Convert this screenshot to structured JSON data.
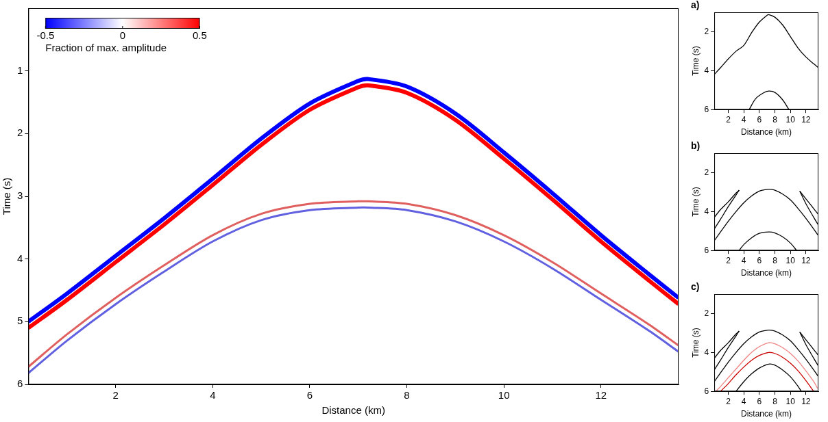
{
  "chart_data": [
    {
      "type": "line",
      "xlabel": "Distance (km)",
      "ylabel": "Time (s)",
      "xlim": [
        0.2,
        13.6
      ],
      "ylim": [
        6,
        0
      ],
      "xticks": [
        2,
        4,
        6,
        8,
        10,
        12
      ],
      "yticks": [
        1,
        2,
        3,
        4,
        5,
        6
      ],
      "grid": false,
      "x": [
        0.2,
        1,
        2,
        3,
        4,
        5,
        6,
        7,
        7.2,
        8,
        9,
        10,
        11,
        12,
        13,
        13.6
      ],
      "series": [
        {
          "color": "#0000ff",
          "values": [
            5.0,
            4.55,
            3.95,
            3.35,
            2.72,
            2.08,
            1.52,
            1.16,
            1.13,
            1.25,
            1.68,
            2.3,
            2.95,
            3.62,
            4.25,
            4.62
          ]
        },
        {
          "color": "#ff0000",
          "values": [
            5.1,
            4.65,
            4.05,
            3.45,
            2.82,
            2.18,
            1.62,
            1.26,
            1.23,
            1.35,
            1.78,
            2.4,
            3.05,
            3.72,
            4.35,
            4.72
          ]
        },
        {
          "color": "#e06060",
          "values": [
            5.72,
            5.2,
            4.62,
            4.1,
            3.62,
            3.28,
            3.12,
            3.08,
            3.08,
            3.12,
            3.3,
            3.62,
            4.05,
            4.55,
            5.05,
            5.38
          ]
        },
        {
          "color": "#6060e0",
          "values": [
            5.82,
            5.3,
            4.72,
            4.2,
            3.72,
            3.38,
            3.22,
            3.18,
            3.18,
            3.22,
            3.4,
            3.72,
            4.15,
            4.65,
            5.15,
            5.48
          ]
        }
      ],
      "colorbar": {
        "range": [
          -0.5,
          0.5
        ],
        "ticks": [
          -0.5,
          0,
          0.5
        ],
        "colors": [
          "#0000ff",
          "#ffffff",
          "#ff0000"
        ],
        "label": "Fraction of max. amplitude"
      }
    },
    {
      "type": "line",
      "label": "a)",
      "xlabel": "Distance (km)",
      "ylabel": "Time (s)",
      "xlim": [
        0.2,
        13.6
      ],
      "ylim": [
        6,
        1
      ],
      "xticks": [
        2,
        4,
        6,
        8,
        10,
        12
      ],
      "yticks": [
        2,
        4,
        6
      ],
      "grid": false,
      "series": [
        {
          "color": "#000000",
          "x": [
            0.2,
            1,
            2,
            3,
            4,
            5,
            6,
            7,
            7.2,
            8,
            9,
            10,
            11,
            12,
            13,
            13.6
          ],
          "values": [
            4.2,
            3.85,
            3.4,
            3.0,
            2.7,
            2.05,
            1.5,
            1.15,
            1.12,
            1.25,
            1.65,
            2.25,
            2.85,
            3.3,
            3.65,
            3.85
          ]
        },
        {
          "color": "#000000",
          "x": [
            4.7,
            5.5,
            6.5,
            7.2,
            8,
            9,
            9.8
          ],
          "values": [
            6,
            5.45,
            5.15,
            5.05,
            5.12,
            5.5,
            6
          ]
        }
      ]
    },
    {
      "type": "line",
      "label": "b)",
      "xlabel": "Distance (km)",
      "ylabel": "Time (s)",
      "xlim": [
        0.2,
        13.6
      ],
      "ylim": [
        6,
        1
      ],
      "xticks": [
        2,
        4,
        6,
        8,
        10,
        12
      ],
      "yticks": [
        2,
        4,
        6
      ],
      "grid": false,
      "series": [
        {
          "color": "#000000",
          "x": [
            0.2,
            1,
            2,
            3,
            4,
            5,
            6,
            7,
            7.2,
            8,
            9,
            10,
            11,
            12,
            13,
            13.6
          ],
          "values": [
            5.5,
            5.05,
            4.5,
            4.0,
            3.55,
            3.2,
            2.95,
            2.86,
            2.85,
            2.9,
            3.1,
            3.4,
            3.85,
            4.35,
            4.9,
            5.25
          ]
        },
        {
          "color": "#000000",
          "x": [
            0.2,
            1,
            2,
            3,
            3.4
          ],
          "values": [
            4.3,
            3.9,
            3.5,
            3.05,
            2.9
          ]
        },
        {
          "color": "#000000",
          "x": [
            0.2,
            1,
            2,
            3,
            3.4
          ],
          "values": [
            4.9,
            4.4,
            3.75,
            3.15,
            2.9
          ]
        },
        {
          "color": "#000000",
          "x": [
            11.2,
            12,
            13,
            13.6
          ],
          "values": [
            2.95,
            3.35,
            3.85,
            4.15
          ]
        },
        {
          "color": "#000000",
          "x": [
            11.2,
            12,
            13,
            13.6
          ],
          "values": [
            2.95,
            3.6,
            4.3,
            4.7
          ]
        },
        {
          "color": "#000000",
          "x": [
            3.4,
            4,
            5,
            6,
            7.2,
            8,
            9,
            10,
            10.8
          ],
          "values": [
            6,
            5.7,
            5.35,
            5.12,
            5.05,
            5.1,
            5.3,
            5.62,
            6
          ]
        }
      ]
    },
    {
      "type": "line",
      "label": "c)",
      "xlabel": "Distance (km)",
      "ylabel": "Time (s)",
      "xlim": [
        0.2,
        13.6
      ],
      "ylim": [
        6,
        1
      ],
      "xticks": [
        2,
        4,
        6,
        8,
        10,
        12
      ],
      "yticks": [
        2,
        4,
        6
      ],
      "grid": false,
      "series": [
        {
          "color": "#000000",
          "x": [
            0.2,
            1,
            2,
            3,
            4,
            5,
            6,
            7,
            7.2,
            8,
            9,
            10,
            11,
            12,
            13,
            13.6
          ],
          "values": [
            5.5,
            5.05,
            4.5,
            4.0,
            3.55,
            3.2,
            2.95,
            2.86,
            2.85,
            2.9,
            3.1,
            3.4,
            3.85,
            4.35,
            4.9,
            5.25
          ]
        },
        {
          "color": "#000000",
          "x": [
            0.2,
            1,
            2,
            3,
            3.4
          ],
          "values": [
            4.3,
            3.9,
            3.5,
            3.05,
            2.9
          ]
        },
        {
          "color": "#000000",
          "x": [
            0.2,
            1,
            2,
            3,
            3.4
          ],
          "values": [
            4.9,
            4.4,
            3.75,
            3.15,
            2.9
          ]
        },
        {
          "color": "#000000",
          "x": [
            11.2,
            12,
            13,
            13.6
          ],
          "values": [
            2.95,
            3.35,
            3.85,
            4.15
          ]
        },
        {
          "color": "#000000",
          "x": [
            11.2,
            12,
            13,
            13.6
          ],
          "values": [
            2.95,
            3.6,
            4.3,
            4.7
          ]
        },
        {
          "color": "#f08080",
          "x": [
            0.4,
            1,
            2,
            3,
            4,
            5,
            6,
            7.2,
            8,
            9,
            10,
            11,
            12,
            13,
            13.5
          ],
          "values": [
            6,
            5.75,
            5.3,
            4.85,
            4.4,
            4.0,
            3.7,
            3.5,
            3.55,
            3.75,
            4.05,
            4.45,
            4.95,
            5.5,
            5.85
          ]
        },
        {
          "color": "#cc0000",
          "x": [
            1.0,
            2,
            3,
            4,
            5,
            6,
            7.2,
            8,
            9,
            10,
            11,
            12,
            13.0
          ],
          "values": [
            6,
            5.6,
            5.15,
            4.75,
            4.4,
            4.15,
            4.0,
            4.05,
            4.25,
            4.55,
            4.95,
            5.45,
            6
          ]
        },
        {
          "color": "#000000",
          "x": [
            3.0,
            4,
            5,
            6,
            7.2,
            8,
            9,
            10,
            11,
            11.4
          ],
          "values": [
            6,
            5.5,
            5.1,
            4.8,
            4.6,
            4.65,
            4.9,
            5.25,
            5.75,
            6
          ]
        }
      ]
    }
  ]
}
